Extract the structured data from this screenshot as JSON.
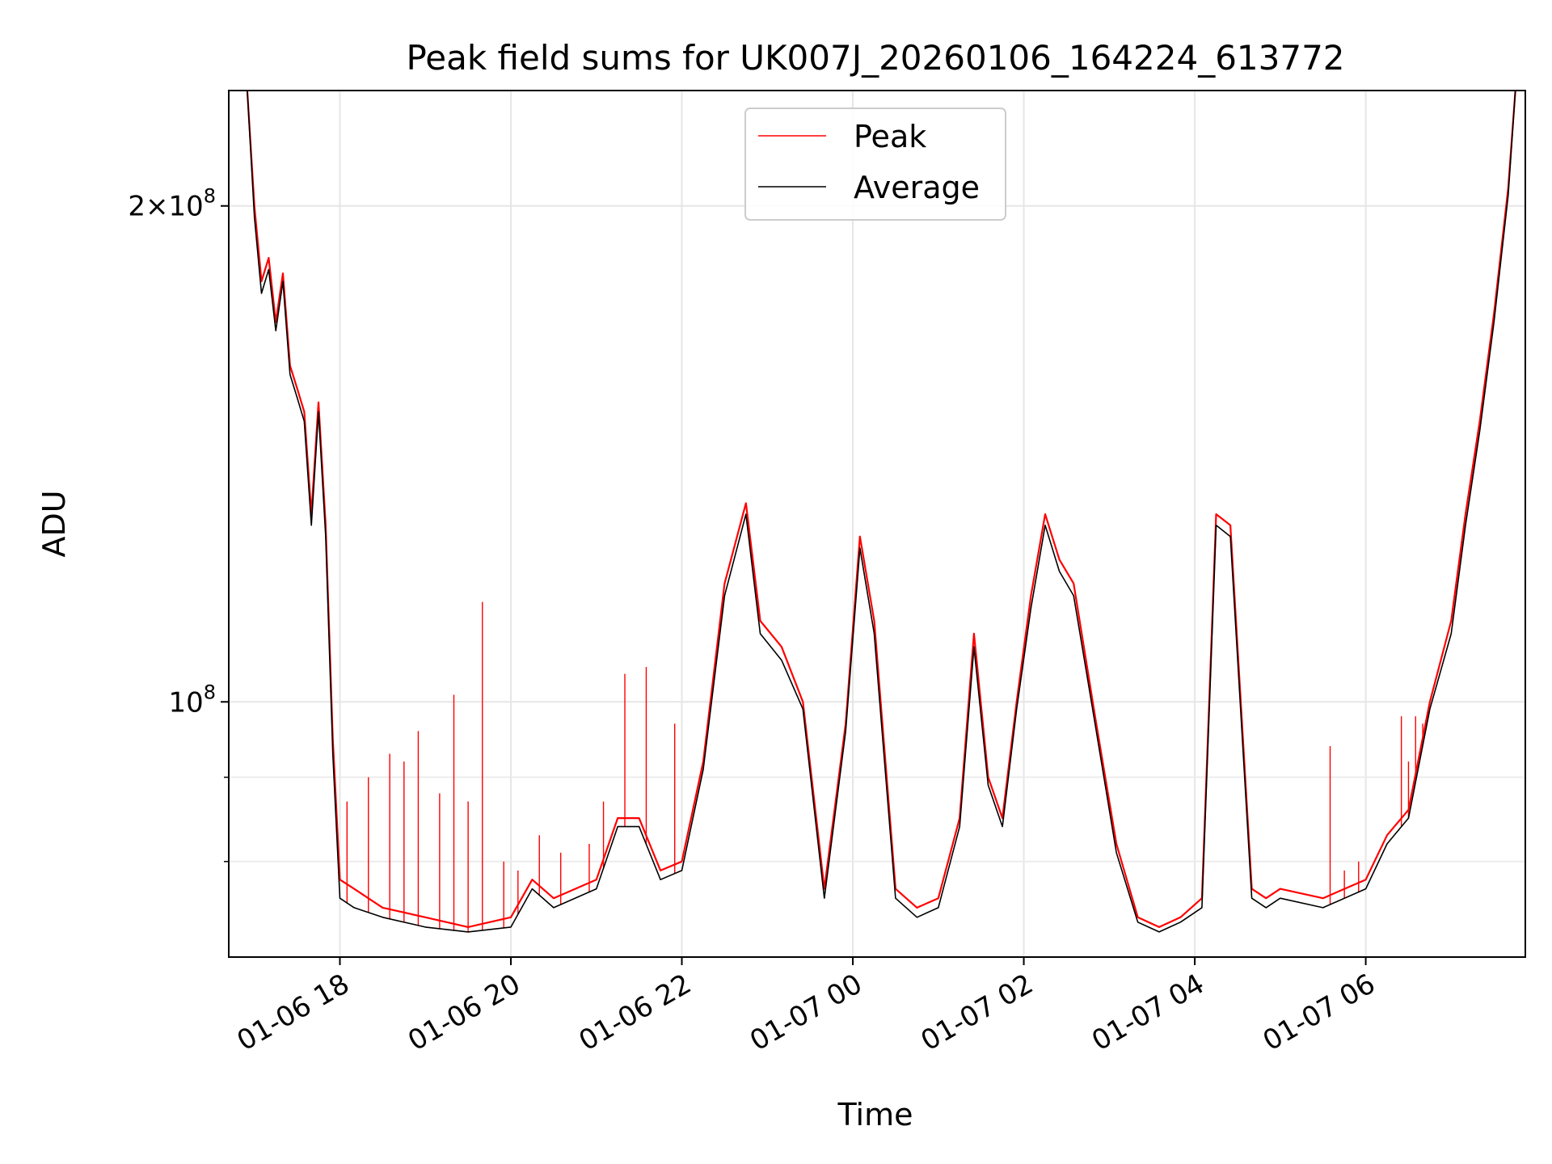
{
  "chart_data": {
    "type": "line",
    "title": "Peak field sums for UK007J_20260106_164224_613772",
    "xlabel": "Time",
    "ylabel": "ADU",
    "y_scale": "log",
    "ylim": [
      70000000,
      235000000
    ],
    "xlim": [
      "01-06 16:42",
      "01-07 07:52"
    ],
    "grid": true,
    "legend_position": "upper center",
    "x_ticks": [
      {
        "value": "01-06 18:00",
        "label": "01-06 18"
      },
      {
        "value": "01-06 20:00",
        "label": "01-06 20"
      },
      {
        "value": "01-06 22:00",
        "label": "01-06 22"
      },
      {
        "value": "01-07 00:00",
        "label": "01-07 00"
      },
      {
        "value": "01-07 02:00",
        "label": "01-07 02"
      },
      {
        "value": "01-07 04:00",
        "label": "01-07 04"
      },
      {
        "value": "01-07 06:00",
        "label": "01-07 06"
      }
    ],
    "y_major_ticks": [
      {
        "value": 100000000,
        "base": "10",
        "exp": "8",
        "coef": ""
      },
      {
        "value": 200000000,
        "base": "10",
        "exp": "8",
        "coef": "2"
      }
    ],
    "y_minor_ticks": [
      80000000,
      90000000
    ],
    "x": [
      "01-06 16:55",
      "01-06 17:00",
      "01-06 17:05",
      "01-06 17:10",
      "01-06 17:15",
      "01-06 17:20",
      "01-06 17:25",
      "01-06 17:30",
      "01-06 17:35",
      "01-06 17:40",
      "01-06 17:45",
      "01-06 17:50",
      "01-06 17:55",
      "01-06 18:00",
      "01-06 18:10",
      "01-06 18:30",
      "01-06 19:00",
      "01-06 19:30",
      "01-06 20:00",
      "01-06 20:15",
      "01-06 20:30",
      "01-06 21:00",
      "01-06 21:15",
      "01-06 21:30",
      "01-06 21:45",
      "01-06 22:00",
      "01-06 22:15",
      "01-06 22:30",
      "01-06 22:45",
      "01-06 22:55",
      "01-06 23:10",
      "01-06 23:25",
      "01-06 23:40",
      "01-06 23:55",
      "01-07 00:05",
      "01-07 00:15",
      "01-07 00:30",
      "01-07 00:45",
      "01-07 01:00",
      "01-07 01:15",
      "01-07 01:25",
      "01-07 01:35",
      "01-07 01:45",
      "01-07 01:55",
      "01-07 02:05",
      "01-07 02:15",
      "01-07 02:25",
      "01-07 02:35",
      "01-07 02:50",
      "01-07 03:05",
      "01-07 03:20",
      "01-07 03:35",
      "01-07 03:50",
      "01-07 04:05",
      "01-07 04:15",
      "01-07 04:25",
      "01-07 04:40",
      "01-07 04:50",
      "01-07 05:00",
      "01-07 05:30",
      "01-07 06:00",
      "01-07 06:15",
      "01-07 06:30",
      "01-07 06:45",
      "01-07 07:00",
      "01-07 07:10",
      "01-07 07:20",
      "01-07 07:30",
      "01-07 07:40",
      "01-07 07:45"
    ],
    "series": [
      {
        "name": "Peak",
        "color": "#ff0000",
        "values": [
          235000000,
          200000000,
          180000000,
          186000000,
          170000000,
          182000000,
          160000000,
          155000000,
          150000000,
          130000000,
          152000000,
          128000000,
          95000000,
          78000000,
          77000000,
          75000000,
          74000000,
          73000000,
          74000000,
          78000000,
          76000000,
          78000000,
          85000000,
          85000000,
          79000000,
          80000000,
          92000000,
          118000000,
          132000000,
          112000000,
          108000000,
          100000000,
          77000000,
          97000000,
          126000000,
          112000000,
          77000000,
          75000000,
          76000000,
          85000000,
          110000000,
          90000000,
          85000000,
          100000000,
          116000000,
          130000000,
          122000000,
          118000000,
          98000000,
          82000000,
          74000000,
          73000000,
          74000000,
          76000000,
          130000000,
          128000000,
          77000000,
          76000000,
          77000000,
          76000000,
          78000000,
          83000000,
          86000000,
          100000000,
          112000000,
          130000000,
          148000000,
          172000000,
          205000000,
          235000000
        ]
      },
      {
        "name": "Average",
        "color": "#000000",
        "values": [
          235000000,
          197000000,
          177000000,
          183000000,
          168000000,
          180000000,
          158000000,
          153000000,
          148000000,
          128000000,
          150000000,
          126000000,
          93000000,
          76000000,
          75000000,
          74000000,
          73000000,
          72500000,
          73000000,
          77000000,
          75000000,
          77000000,
          84000000,
          84000000,
          78000000,
          79000000,
          91000000,
          116000000,
          130000000,
          110000000,
          106000000,
          99000000,
          76000000,
          96000000,
          124000000,
          110000000,
          76000000,
          74000000,
          75000000,
          84000000,
          108000000,
          89000000,
          84000000,
          99000000,
          114000000,
          128000000,
          120000000,
          116000000,
          97000000,
          81000000,
          73500000,
          72500000,
          73500000,
          75000000,
          128000000,
          126000000,
          76000000,
          75000000,
          76000000,
          75000000,
          77000000,
          82000000,
          85000000,
          99000000,
          110000000,
          128000000,
          146000000,
          170000000,
          203000000,
          235000000
        ]
      }
    ],
    "peak_spikes": [
      {
        "x": "01-06 18:05",
        "y": 87000000
      },
      {
        "x": "01-06 18:20",
        "y": 90000000
      },
      {
        "x": "01-06 18:35",
        "y": 93000000
      },
      {
        "x": "01-06 18:45",
        "y": 92000000
      },
      {
        "x": "01-06 18:55",
        "y": 96000000
      },
      {
        "x": "01-06 19:10",
        "y": 88000000
      },
      {
        "x": "01-06 19:20",
        "y": 101000000
      },
      {
        "x": "01-06 19:30",
        "y": 87000000
      },
      {
        "x": "01-06 19:40",
        "y": 115000000
      },
      {
        "x": "01-06 19:55",
        "y": 80000000
      },
      {
        "x": "01-06 20:05",
        "y": 79000000
      },
      {
        "x": "01-06 20:20",
        "y": 83000000
      },
      {
        "x": "01-06 20:35",
        "y": 81000000
      },
      {
        "x": "01-06 20:55",
        "y": 82000000
      },
      {
        "x": "01-06 21:05",
        "y": 87000000
      },
      {
        "x": "01-06 21:20",
        "y": 104000000
      },
      {
        "x": "01-06 21:35",
        "y": 105000000
      },
      {
        "x": "01-06 21:55",
        "y": 97000000
      },
      {
        "x": "01-07 05:35",
        "y": 94000000
      },
      {
        "x": "01-07 05:45",
        "y": 79000000
      },
      {
        "x": "01-07 05:55",
        "y": 80000000
      },
      {
        "x": "01-07 06:25",
        "y": 98000000
      },
      {
        "x": "01-07 06:30",
        "y": 92000000
      },
      {
        "x": "01-07 06:35",
        "y": 98000000
      },
      {
        "x": "01-07 06:40",
        "y": 97000000
      },
      {
        "x": "01-07 06:45",
        "y": 99000000
      }
    ]
  }
}
